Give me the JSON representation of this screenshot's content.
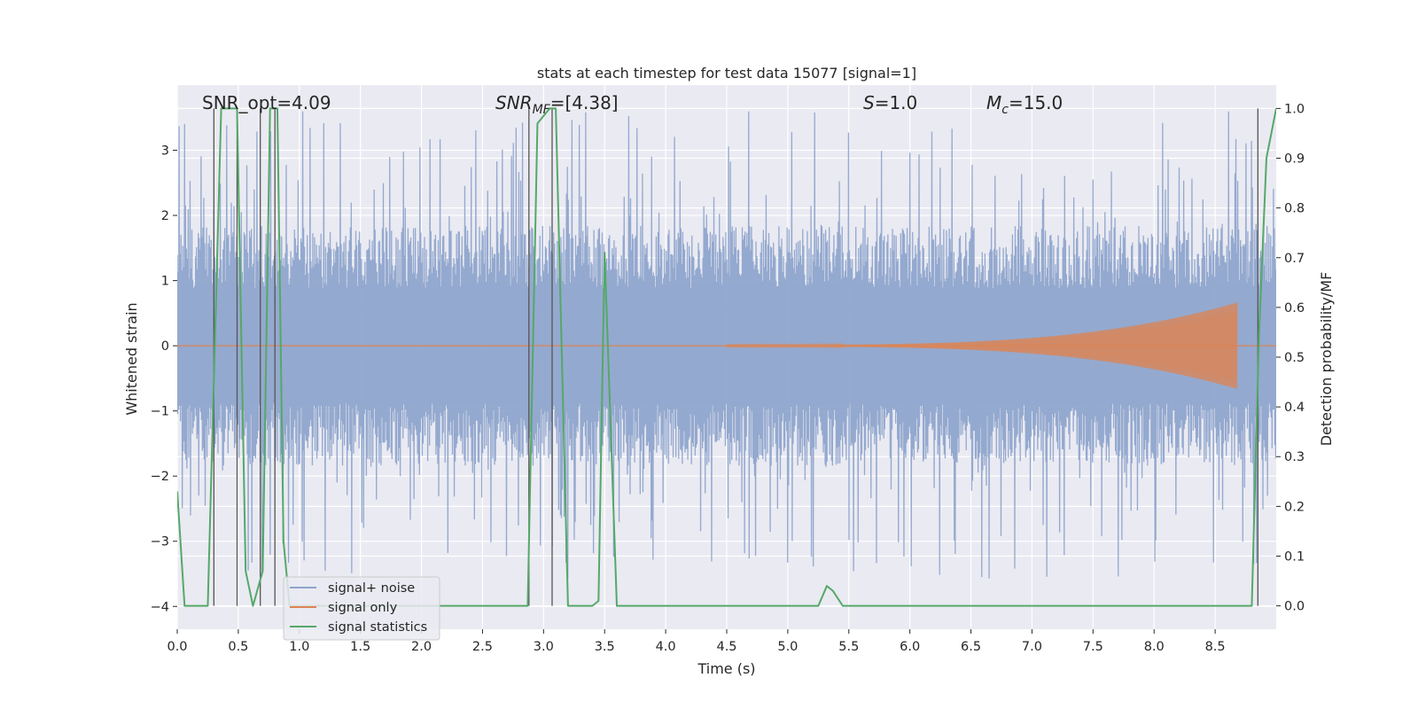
{
  "chart_data": {
    "type": "line",
    "title": "stats at each timestep for test data 15077 [signal=1]",
    "xlabel": "Time (s)",
    "ylabel": "Whitened strain",
    "y2label": "Detection probability/MF",
    "xlim": [
      0.0,
      9.0
    ],
    "ylim": [
      -4.35,
      4.0
    ],
    "y2lim": [
      -0.047,
      1.047
    ],
    "xticks": [
      "0.0",
      "0.5",
      "1.0",
      "1.5",
      "2.0",
      "2.5",
      "3.0",
      "3.5",
      "4.0",
      "4.5",
      "5.0",
      "5.5",
      "6.0",
      "6.5",
      "7.0",
      "7.5",
      "8.0",
      "8.5"
    ],
    "yticks": [
      "3",
      "2",
      "1",
      "0",
      "−1",
      "−2",
      "−3",
      "−4"
    ],
    "y2ticks": [
      "1.0",
      "0.9",
      "0.8",
      "0.7",
      "0.6",
      "0.5",
      "0.4",
      "0.3",
      "0.2",
      "0.1",
      "0.0"
    ],
    "grid": true,
    "legend_position": "lower-left",
    "annotations": {
      "snr_opt": "SNR_opt=4.09",
      "snr_mf": "SNR",
      "snr_mf_sub": "MF",
      "snr_mf_value": "=[4.38]",
      "s_label": "S",
      "s_value": "=1.0",
      "mc_label": "M",
      "mc_sub": "c",
      "mc_value": "=15.0"
    },
    "series": [
      {
        "name": "signal+ noise",
        "axis": "left",
        "color": "#8fa5cc",
        "noise_amplitude_typical": 1.6,
        "noise_amplitude_peak": 3.6
      },
      {
        "name": "signal only",
        "axis": "left",
        "color": "#dd8452",
        "chirp_start": 4.5,
        "chirp_end": 8.68,
        "chirp_peak_amplitude": 0.65
      },
      {
        "name": "signal statistics",
        "axis": "right",
        "color": "#55a868",
        "x": [
          0.0,
          0.06,
          0.25,
          0.36,
          0.49,
          0.56,
          0.62,
          0.7,
          0.76,
          0.82,
          0.87,
          0.92,
          0.97,
          1.02,
          2.87,
          2.95,
          3.05,
          3.1,
          3.2,
          3.4,
          3.45,
          3.5,
          3.6,
          5.25,
          5.32,
          5.37,
          5.45,
          8.8,
          8.86,
          8.92,
          9.0
        ],
        "values": [
          0.23,
          0.0,
          0.0,
          1.0,
          1.0,
          0.07,
          0.0,
          0.07,
          1.0,
          1.0,
          0.13,
          0.0,
          0.0,
          0.0,
          0.0,
          0.97,
          1.0,
          1.0,
          0.0,
          0.0,
          0.01,
          0.71,
          0.0,
          0.0,
          0.04,
          0.03,
          0.0,
          0.0,
          0.55,
          0.9,
          1.0
        ]
      }
    ],
    "vertical_markers": [
      0.3,
      0.49,
      0.68,
      0.8,
      2.88,
      3.07,
      8.85
    ]
  }
}
